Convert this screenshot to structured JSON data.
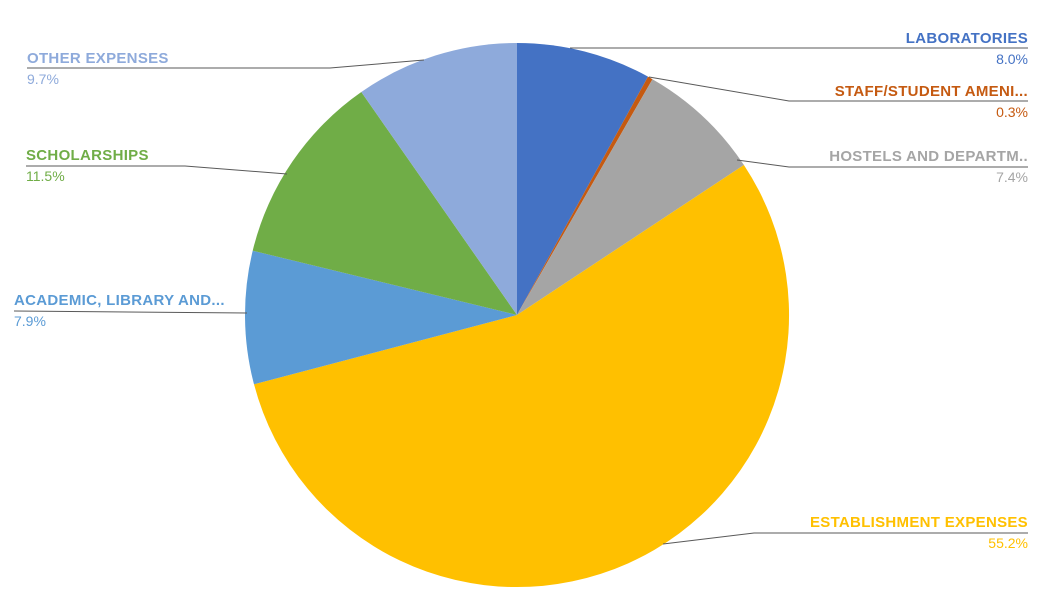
{
  "chart_data": {
    "type": "pie",
    "title": "",
    "legend": "none",
    "labels_style": "outside category name + percentage with leader lines",
    "start_angle_deg": 0,
    "direction": "clockwise",
    "background_color": "#FFFFFF",
    "leader_line_color": "#595959",
    "slices": [
      {
        "label": "LABORATORIES",
        "value": 8.0,
        "pct": "8.0%",
        "color": "#4472C4"
      },
      {
        "label": "STAFF/STUDENT AMENI...",
        "value": 0.3,
        "pct": "0.3%",
        "color": "#C55A11"
      },
      {
        "label": "HOSTELS AND DEPARTM..",
        "value": 7.4,
        "pct": "7.4%",
        "color": "#A5A5A5"
      },
      {
        "label": "ESTABLISHMENT EXPENSES",
        "value": 55.2,
        "pct": "55.2%",
        "color": "#FFC000"
      },
      {
        "label": "ACADEMIC, LIBRARY AND...",
        "value": 7.9,
        "pct": "7.9%",
        "color": "#5B9BD5"
      },
      {
        "label": "SCHOLARSHIPS",
        "value": 11.5,
        "pct": "11.5%",
        "color": "#70AD47"
      },
      {
        "label": "OTHER EXPENSES",
        "value": 9.7,
        "pct": "9.7%",
        "color": "#8EAADB"
      }
    ]
  }
}
